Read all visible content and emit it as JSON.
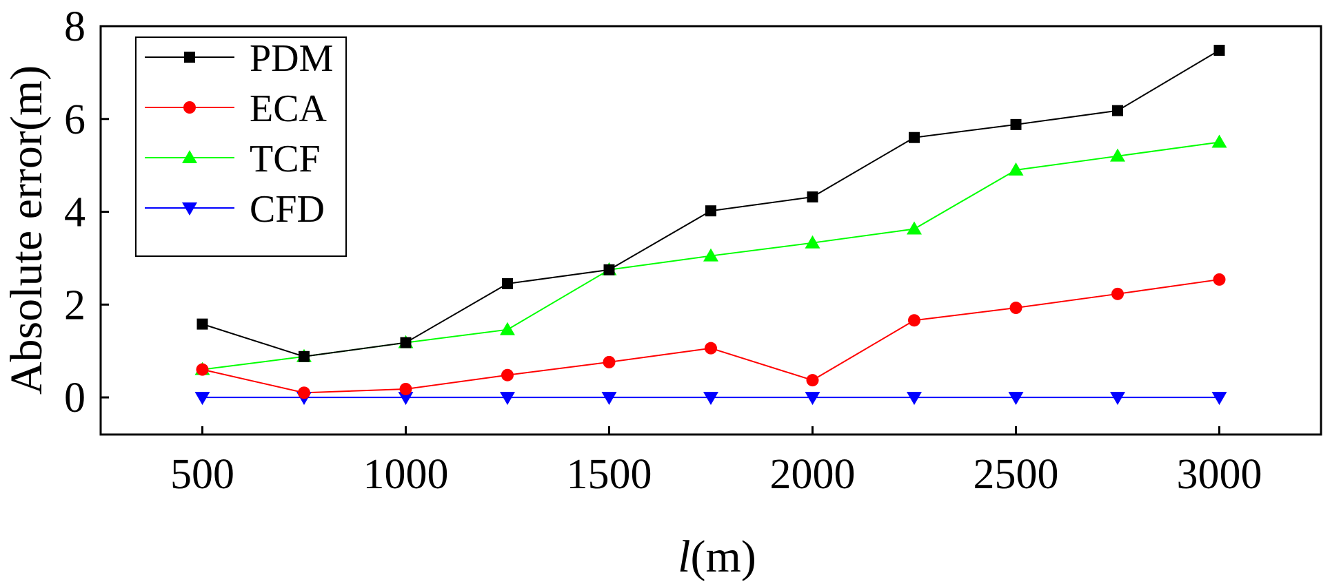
{
  "chart_data": {
    "type": "line",
    "title": "",
    "xlabel_italic": "l",
    "xlabel_unit": "(m)",
    "ylabel": "Absolute error(m)",
    "xlim": [
      250,
      3250
    ],
    "ylim": [
      -0.8,
      8
    ],
    "x": [
      500,
      750,
      1000,
      1250,
      1500,
      1750,
      2000,
      2250,
      2500,
      2750,
      3000
    ],
    "xticks": [
      500,
      1000,
      1500,
      2000,
      2500,
      3000
    ],
    "yticks": [
      0,
      2,
      4,
      6,
      8
    ],
    "grid": false,
    "legend_position": "top-left",
    "series": [
      {
        "name": "PDM",
        "color": "#000000",
        "marker": "square",
        "values": [
          1.58,
          0.88,
          1.18,
          2.45,
          2.75,
          4.02,
          4.32,
          5.6,
          5.88,
          6.18,
          7.48
        ]
      },
      {
        "name": "ECA",
        "color": "#ff0000",
        "marker": "circle",
        "values": [
          0.6,
          0.1,
          0.18,
          0.48,
          0.76,
          1.06,
          0.37,
          1.66,
          1.93,
          2.23,
          2.54
        ]
      },
      {
        "name": "TCF",
        "color": "#00ff00",
        "marker": "triangle-up",
        "values": [
          0.6,
          0.88,
          1.18,
          1.46,
          2.75,
          3.05,
          3.33,
          3.63,
          4.9,
          5.2,
          5.5
        ]
      },
      {
        "name": "CFD",
        "color": "#0000ff",
        "marker": "triangle-down",
        "values": [
          0,
          0,
          0,
          0,
          0,
          0,
          0,
          0,
          0,
          0,
          0
        ]
      }
    ]
  }
}
